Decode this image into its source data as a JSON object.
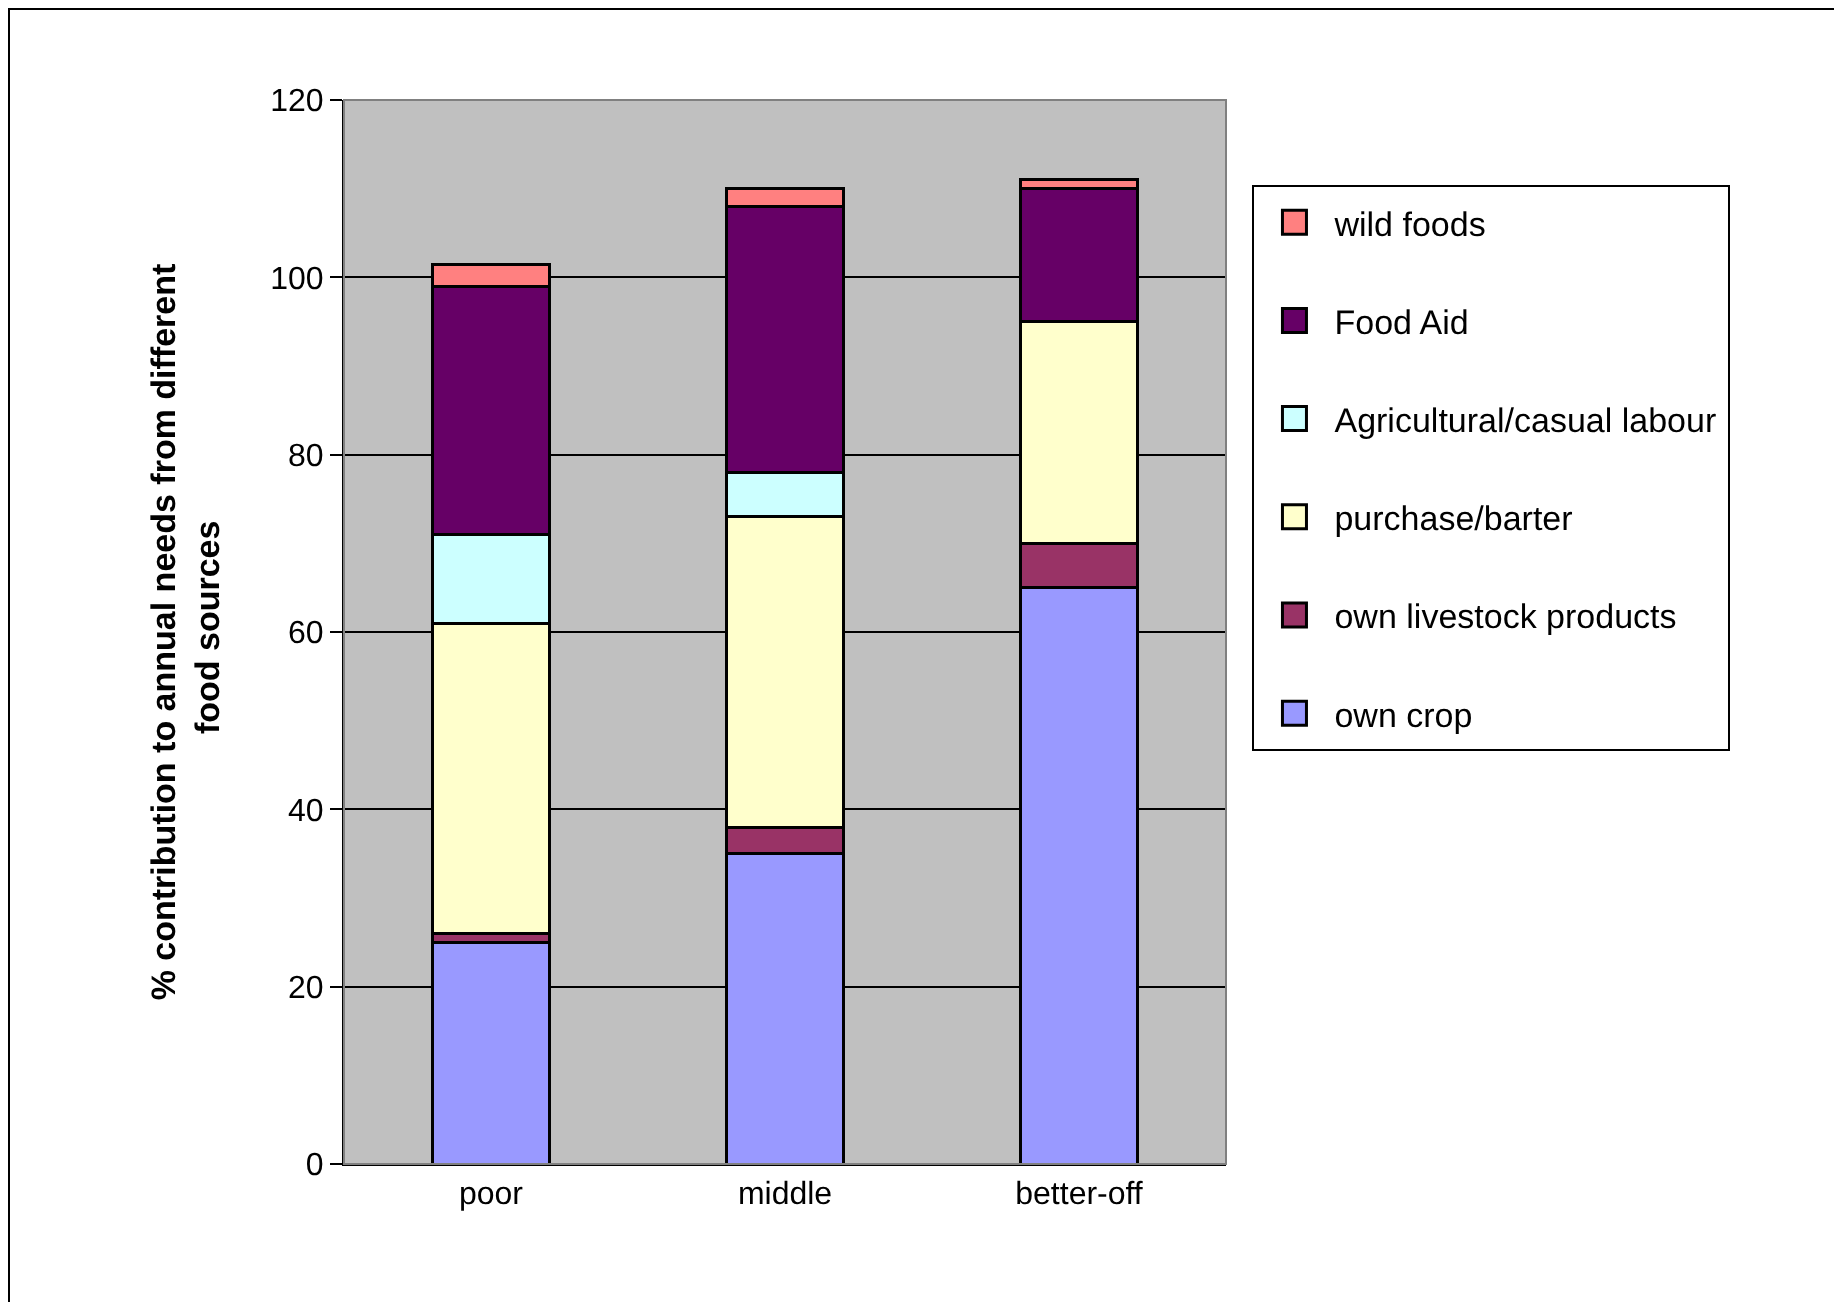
{
  "chart_data": {
    "type": "bar",
    "stacked": true,
    "ylabel": "% contribution to annual needs from different food sources",
    "categories": [
      "poor",
      "middle",
      "better-off"
    ],
    "series": [
      {
        "name": "own crop",
        "color": "#9999ff",
        "values": [
          25,
          35,
          65
        ]
      },
      {
        "name": "own livestock products",
        "color": "#993366",
        "values": [
          1,
          3,
          5
        ]
      },
      {
        "name": "purchase/barter",
        "color": "#ffffcc",
        "values": [
          35,
          35,
          25
        ]
      },
      {
        "name": "Agricultural/casual labour",
        "color": "#ccffff",
        "values": [
          10,
          5,
          0
        ]
      },
      {
        "name": "Food Aid",
        "color": "#660066",
        "values": [
          28,
          30,
          15
        ]
      },
      {
        "name": "wild foods",
        "color": "#ff8080",
        "values": [
          2.5,
          2,
          1
        ]
      }
    ],
    "ylim": [
      0,
      120
    ],
    "yticks": [
      0,
      20,
      40,
      60,
      80,
      100,
      120
    ],
    "grid": "y",
    "legend": "right"
  }
}
